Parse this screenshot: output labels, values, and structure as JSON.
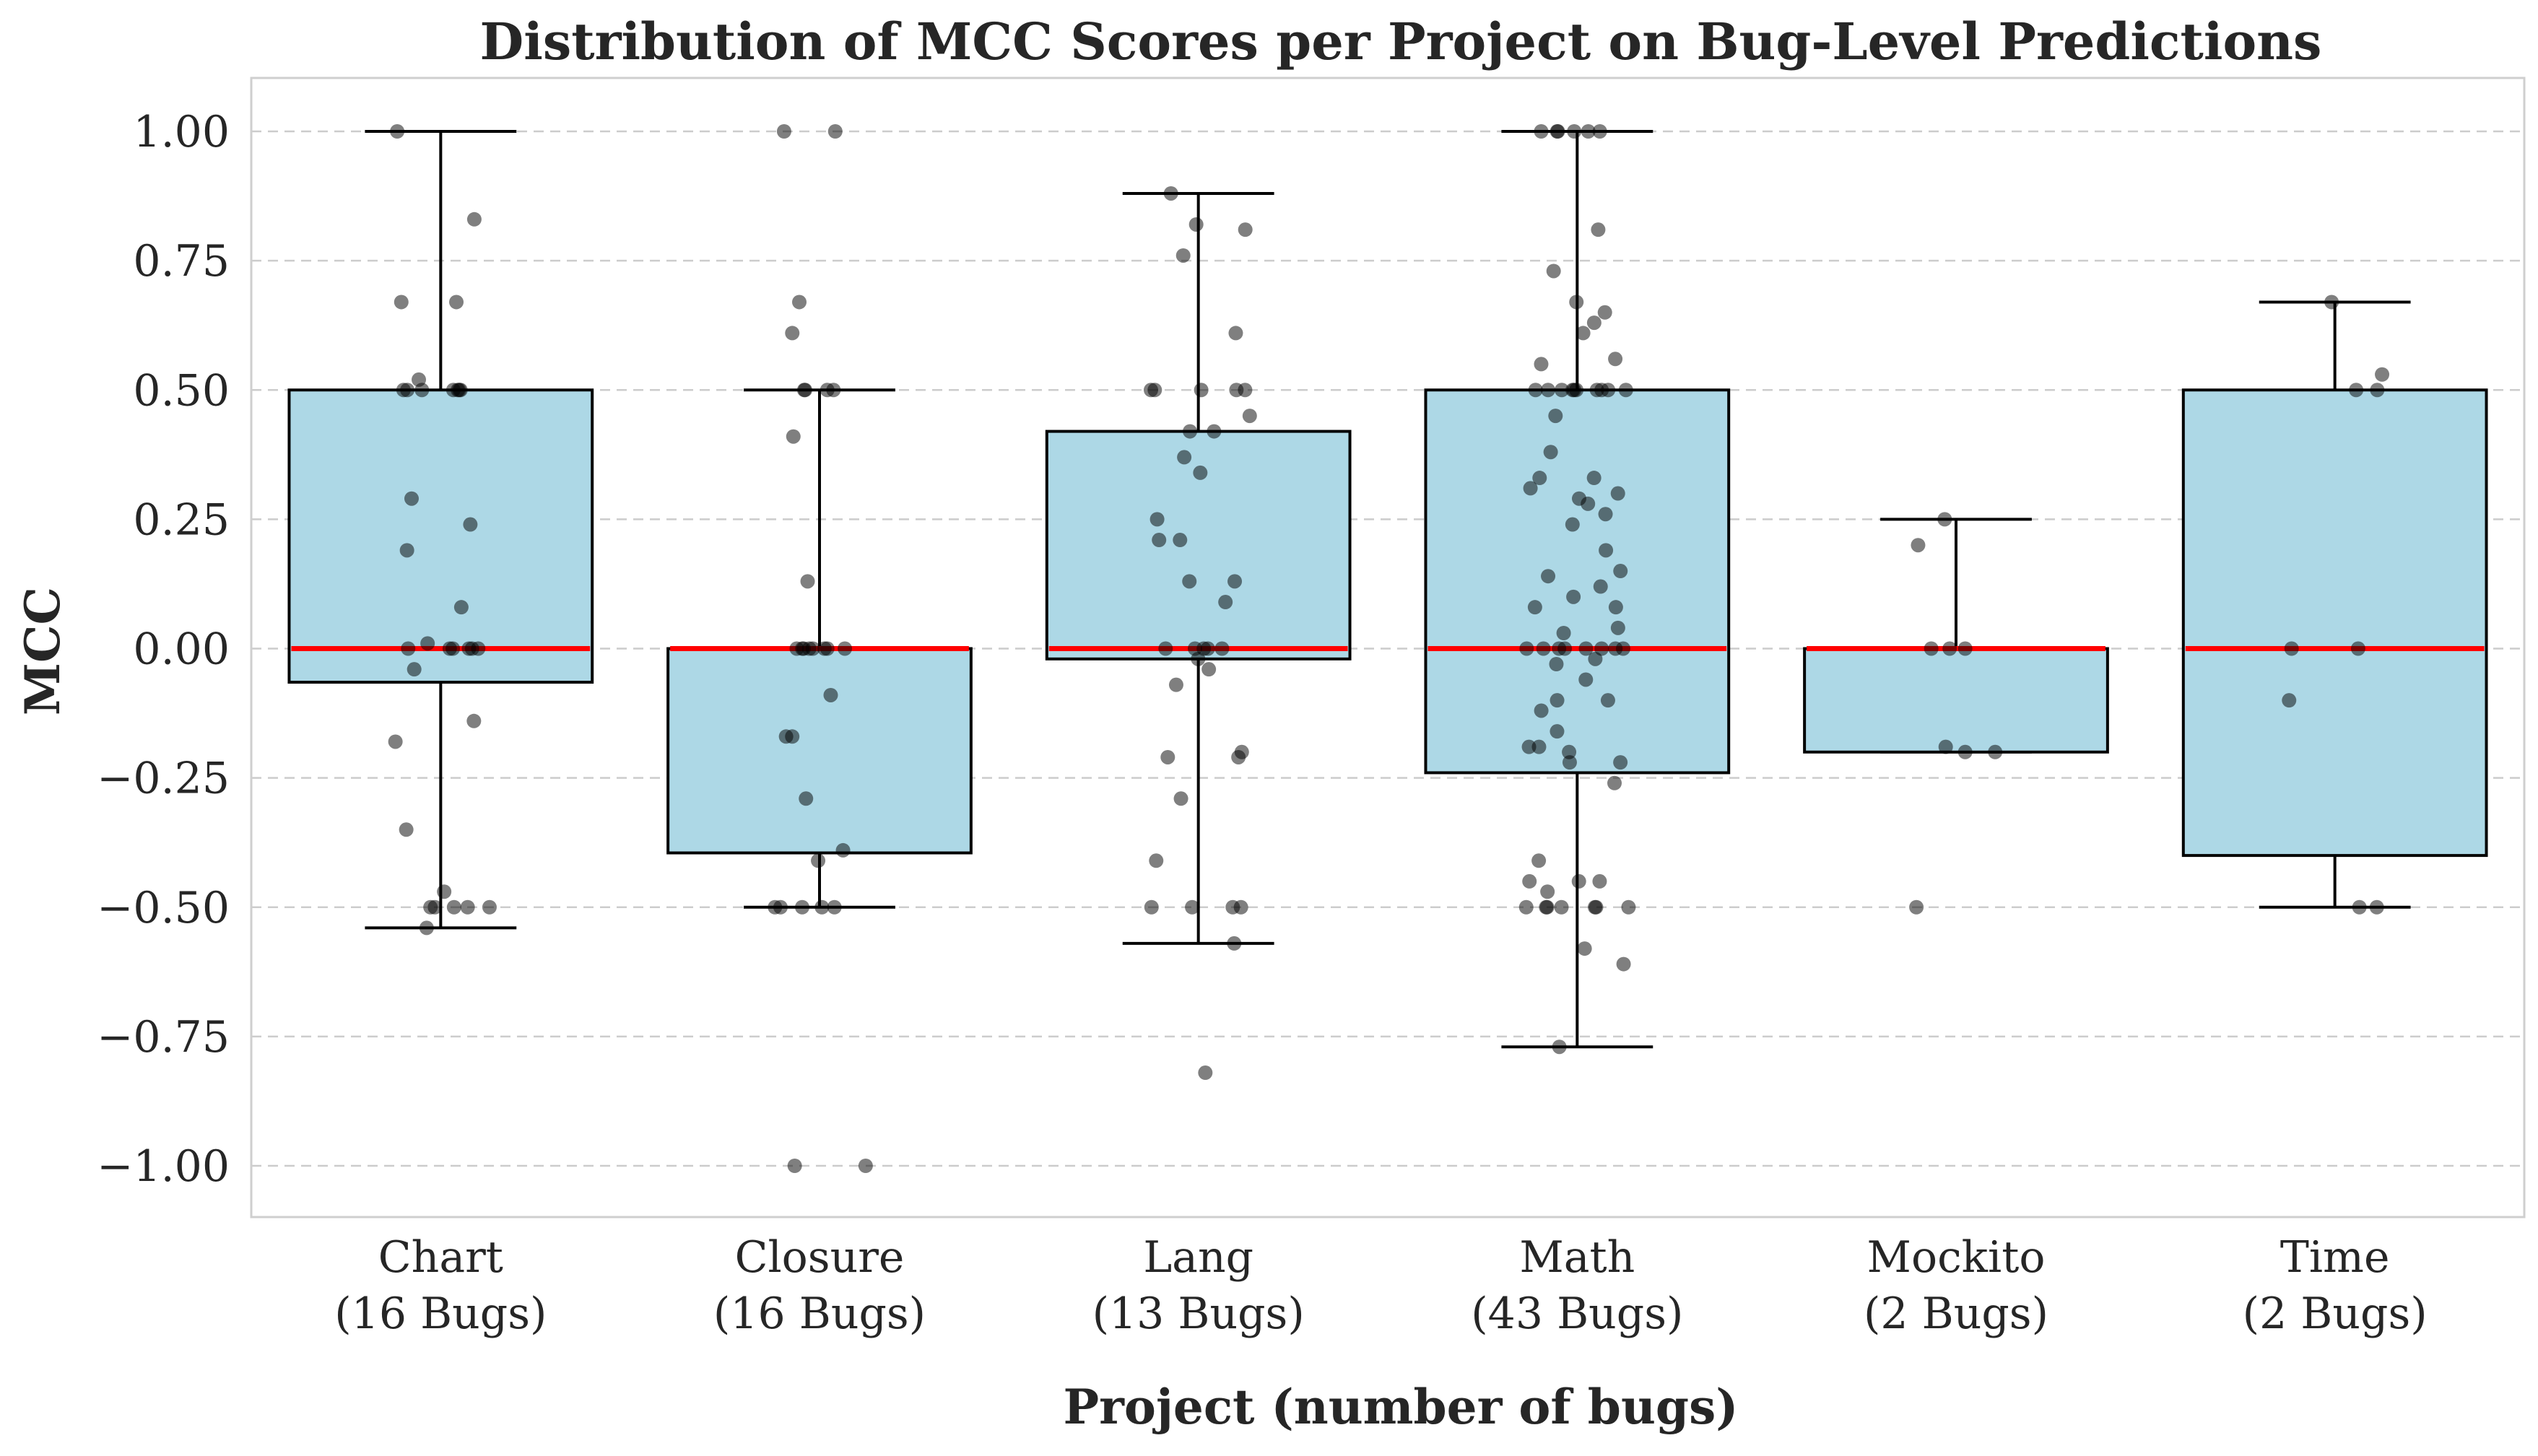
{
  "chart_data": {
    "type": "box",
    "title": "Distribution of MCC Scores per Project on Bug-Level Predictions",
    "xlabel": "Project (number of bugs)",
    "ylabel": "MCC",
    "ylim": [
      -1.1,
      1.1
    ],
    "yticks": [
      1.0,
      0.75,
      0.5,
      0.25,
      0.0,
      -0.25,
      -0.5,
      -0.75,
      -1.0
    ],
    "ytick_labels": [
      "1.00",
      "0.75",
      "0.50",
      "0.25",
      "0.00",
      "−0.25",
      "−0.50",
      "−0.75",
      "−1.00"
    ],
    "grid": "horizontal dashed",
    "colors": {
      "box_fill": "#add8e6",
      "median": "#ff0000",
      "points": "#000000"
    },
    "categories": [
      {
        "name": "Chart",
        "bugs_label": "(16 Bugs)",
        "whisker_low": -0.54,
        "q1": -0.065,
        "median": 0.0,
        "q3": 0.5,
        "whisker_high": 1.0,
        "points": [
          1.0,
          0.83,
          0.67,
          0.67,
          0.52,
          0.5,
          0.5,
          0.5,
          0.5,
          0.5,
          0.5,
          0.5,
          0.29,
          0.24,
          0.19,
          0.08,
          0.01,
          0.0,
          0.0,
          0.0,
          0.0,
          0.0,
          0.0,
          -0.04,
          -0.14,
          -0.18,
          -0.35,
          -0.47,
          -0.5,
          -0.5,
          -0.5,
          -0.5,
          -0.5,
          -0.54
        ]
      },
      {
        "name": "Closure",
        "bugs_label": "(16 Bugs)",
        "whisker_low": -0.5,
        "q1": -0.395,
        "median": 0.0,
        "q3": 0.0,
        "whisker_high": 0.5,
        "points": [
          1.0,
          1.0,
          0.67,
          0.61,
          0.5,
          0.5,
          0.5,
          0.5,
          0.41,
          0.13,
          0.0,
          0.0,
          0.0,
          0.0,
          0.0,
          0.0,
          0.0,
          0.0,
          -0.09,
          -0.17,
          -0.17,
          -0.29,
          -0.39,
          -0.41,
          -0.5,
          -0.5,
          -0.5,
          -0.5,
          -0.5,
          -1.0,
          -1.0
        ]
      },
      {
        "name": "Lang",
        "bugs_label": "(13 Bugs)",
        "whisker_low": -0.57,
        "q1": -0.02,
        "median": 0.0,
        "q3": 0.42,
        "whisker_high": 0.88,
        "points": [
          0.88,
          0.82,
          0.81,
          0.76,
          0.61,
          0.5,
          0.5,
          0.5,
          0.5,
          0.5,
          0.45,
          0.42,
          0.42,
          0.37,
          0.34,
          0.25,
          0.21,
          0.21,
          0.13,
          0.13,
          0.09,
          0.0,
          0.0,
          0.0,
          0.0,
          0.0,
          -0.02,
          -0.04,
          -0.07,
          -0.2,
          -0.21,
          -0.21,
          -0.29,
          -0.41,
          -0.5,
          -0.5,
          -0.5,
          -0.5,
          -0.57,
          -0.82
        ]
      },
      {
        "name": "Math",
        "bugs_label": "(43 Bugs)",
        "whisker_low": -0.77,
        "q1": -0.24,
        "median": 0.0,
        "q3": 0.5,
        "whisker_high": 1.0,
        "points": [
          1.0,
          1.0,
          1.0,
          1.0,
          1.0,
          1.0,
          0.81,
          0.73,
          0.67,
          0.65,
          0.63,
          0.61,
          0.56,
          0.55,
          0.5,
          0.5,
          0.5,
          0.5,
          0.5,
          0.5,
          0.5,
          0.5,
          0.5,
          0.5,
          0.45,
          0.38,
          0.33,
          0.33,
          0.31,
          0.3,
          0.29,
          0.28,
          0.26,
          0.24,
          0.19,
          0.15,
          0.14,
          0.12,
          0.1,
          0.08,
          0.08,
          0.04,
          0.03,
          0.0,
          0.0,
          0.0,
          0.0,
          0.0,
          0.0,
          0.0,
          0.0,
          -0.02,
          -0.03,
          -0.06,
          -0.1,
          -0.1,
          -0.12,
          -0.16,
          -0.19,
          -0.19,
          -0.2,
          -0.22,
          -0.22,
          -0.26,
          -0.41,
          -0.45,
          -0.45,
          -0.45,
          -0.47,
          -0.5,
          -0.5,
          -0.5,
          -0.5,
          -0.5,
          -0.5,
          -0.5,
          -0.58,
          -0.61,
          -0.77
        ]
      },
      {
        "name": "Mockito",
        "bugs_label": "(2 Bugs)",
        "whisker_low": -0.2,
        "q1": -0.2,
        "median": 0.0,
        "q3": 0.0,
        "whisker_high": 0.25,
        "points": [
          0.25,
          0.2,
          0.0,
          0.0,
          0.0,
          -0.19,
          -0.2,
          -0.2,
          -0.5
        ]
      },
      {
        "name": "Time",
        "bugs_label": "(2 Bugs)",
        "whisker_low": -0.5,
        "q1": -0.4,
        "median": 0.0,
        "q3": 0.5,
        "whisker_high": 0.67,
        "points": [
          0.67,
          0.53,
          0.5,
          0.5,
          0.0,
          0.0,
          -0.1,
          -0.5,
          -0.5
        ]
      }
    ]
  }
}
